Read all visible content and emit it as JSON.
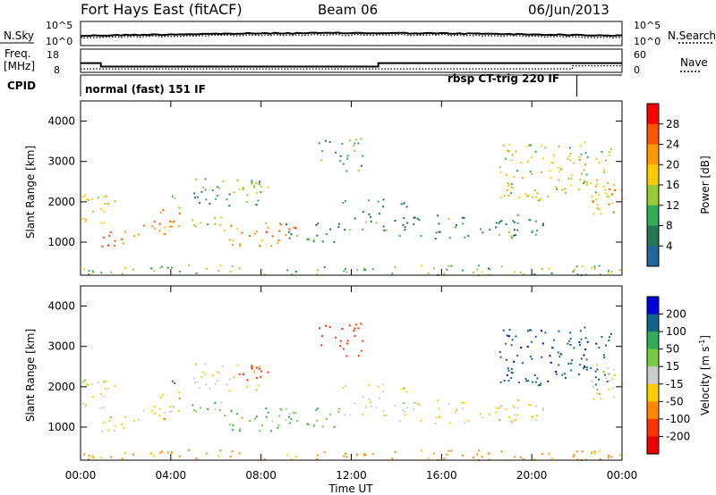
{
  "header": {
    "station": "Fort Hays East (fitACF)",
    "beam": "Beam 06",
    "date": "06/Jun/2013"
  },
  "noise_panel": {
    "left_label": "N.Sky",
    "right_label": "N.Search",
    "left_ticks": [
      "10^5",
      "10^0"
    ],
    "right_ticks": [
      "10^5",
      "10^0"
    ]
  },
  "freq_panel": {
    "left_label_line1": "Freq.",
    "left_label_line2": "[MHz]",
    "right_label": "Nave",
    "left_ticks": [
      "18",
      "8"
    ],
    "right_ticks": [
      "60",
      "0"
    ]
  },
  "cpid_panel": {
    "label": "CPID",
    "mode_1": "normal (fast) 151 IF",
    "mode_2": "rbsp CT-trig 220 IF"
  },
  "axes": {
    "ylabel": "Slant Range [km]",
    "xlabel": "Time UT",
    "y_ticks": [
      "4000",
      "3000",
      "2000",
      "1000"
    ],
    "x_ticks": [
      "00:00",
      "04:00",
      "08:00",
      "12:00",
      "16:00",
      "20:00",
      "00:00"
    ]
  },
  "power_colorbar": {
    "label": "Power [dB]",
    "ticks": [
      "28",
      "24",
      "20",
      "16",
      "12",
      "8",
      "4"
    ],
    "colors": [
      "#ff0000",
      "#ff5500",
      "#ff9900",
      "#ffcc00",
      "#99cc33",
      "#33aa55",
      "#227755",
      "#226699",
      "#0000ff"
    ]
  },
  "velocity_colorbar": {
    "label": "Velocity [m s",
    "label_sup": "-1",
    "label_end": "]",
    "ticks": [
      "200",
      "100",
      "50",
      "15",
      "-15",
      "-50",
      "-100",
      "-200"
    ],
    "colors": [
      "#0000dd",
      "#116688",
      "#33aa55",
      "#77cc44",
      "#cccccc",
      "#ffcc00",
      "#ff8800",
      "#ff3300",
      "#ee0000"
    ]
  },
  "chart_data": {
    "type": "heatmap",
    "x_range_hours": [
      0,
      24
    ],
    "y_range_km": [
      180,
      4500
    ],
    "frequency_mhz": {
      "segments": [
        {
          "start_h": 0.0,
          "end_h": 0.9,
          "value": 12
        },
        {
          "start_h": 0.9,
          "end_h": 13.2,
          "value": 10.5
        },
        {
          "start_h": 13.2,
          "end_h": 24.0,
          "value": 12
        }
      ]
    },
    "nave": {
      "segments": [
        {
          "start_h": 0.0,
          "end_h": 21.8,
          "value": 9
        },
        {
          "start_h": 21.8,
          "end_h": 24.0,
          "value": 17
        }
      ]
    },
    "cpid_change_h": 22.0,
    "echo_regions": [
      {
        "h0": 0.0,
        "h1": 1.5,
        "r0": 1400,
        "r1": 2200,
        "power_db": 18,
        "velocity": -10
      },
      {
        "h0": 0.8,
        "h1": 3.0,
        "r0": 900,
        "r1": 1300,
        "power_db": 26,
        "velocity": -10
      },
      {
        "h0": 2.5,
        "h1": 4.5,
        "r0": 1200,
        "r1": 1900,
        "power_db": 24,
        "velocity": -30
      },
      {
        "h0": 4.5,
        "h1": 7.0,
        "r0": 1300,
        "r1": 1700,
        "power_db": 14,
        "velocity": 30
      },
      {
        "h0": 5.0,
        "h1": 8.0,
        "r0": 1900,
        "r1": 2600,
        "power_db": 10,
        "velocity": -10
      },
      {
        "h0": 6.5,
        "h1": 9.5,
        "r0": 900,
        "r1": 1500,
        "power_db": 24,
        "velocity": 40
      },
      {
        "h0": 3.5,
        "h1": 4.5,
        "r0": 1900,
        "r1": 2300,
        "power_db": 12,
        "velocity": 120
      },
      {
        "h0": 7.0,
        "h1": 8.5,
        "r0": 2000,
        "r1": 2600,
        "power_db": 14,
        "velocity": -150
      },
      {
        "h0": 9.0,
        "h1": 11.5,
        "r0": 1000,
        "r1": 1500,
        "power_db": 8,
        "velocity": 40
      },
      {
        "h0": 11.5,
        "h1": 14.5,
        "r0": 1300,
        "r1": 2100,
        "power_db": 8,
        "velocity": -10
      },
      {
        "h0": 14.0,
        "h1": 20.5,
        "r0": 1100,
        "r1": 1700,
        "power_db": 8,
        "velocity": -10
      },
      {
        "h0": 18.5,
        "h1": 23.5,
        "r0": 2000,
        "r1": 3500,
        "power_db": 16,
        "velocity": 180
      },
      {
        "h0": 22.5,
        "h1": 24.0,
        "r0": 1600,
        "r1": 2600,
        "power_db": 22,
        "velocity": -10
      },
      {
        "h0": 10.5,
        "h1": 12.5,
        "r0": 2700,
        "r1": 3600,
        "power_db": 10,
        "velocity": -150
      },
      {
        "h0": 0.0,
        "h1": 24.0,
        "r0": 200,
        "r1": 450,
        "power_db": 12,
        "velocity": -60
      }
    ]
  }
}
